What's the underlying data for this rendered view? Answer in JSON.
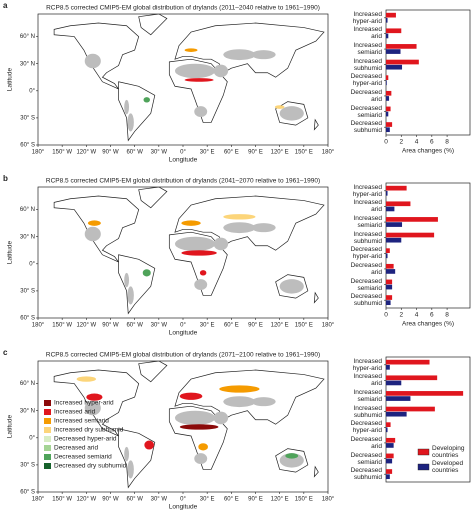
{
  "chart_data": [
    {
      "type": "map",
      "label": "a",
      "title": "RCP8.5 corrected CMIP5-EM global distribution of drylands (2011–2040 relative to 1961–1990)",
      "xlabel": "Longitude",
      "ylabel": "Latitude",
      "xlim": [
        -180,
        180
      ],
      "ylim": [
        -60,
        85
      ],
      "xticks": [
        {
          "value": -180,
          "label": "180°"
        },
        {
          "value": -150,
          "label": "150° W"
        },
        {
          "value": -120,
          "label": "120° W"
        },
        {
          "value": -90,
          "label": "90° W"
        },
        {
          "value": -60,
          "label": "60° W"
        },
        {
          "value": -30,
          "label": "30° W"
        },
        {
          "value": 0,
          "label": "0°"
        },
        {
          "value": 30,
          "label": "30° E"
        },
        {
          "value": 60,
          "label": "60° E"
        },
        {
          "value": 90,
          "label": "90° E"
        },
        {
          "value": 120,
          "label": "120° E"
        },
        {
          "value": 150,
          "label": "150° E"
        },
        {
          "value": 180,
          "label": "180°"
        }
      ],
      "yticks": [
        {
          "value": 60,
          "label": "60° N"
        },
        {
          "value": 30,
          "label": "30° N"
        },
        {
          "value": 0,
          "label": "0°"
        },
        {
          "value": -30,
          "label": "30° S"
        },
        {
          "value": -60,
          "label": "60° S"
        }
      ]
    },
    {
      "type": "hbar",
      "categories": [
        "Increased hyper-arid",
        "Increased arid",
        "Increased semiarid",
        "Increased subhumid",
        "Decreased hyper-arid",
        "Decreased arid",
        "Decreased semiarid",
        "Decreased subhumid"
      ],
      "series": [
        {
          "color": "#e0161e",
          "values": [
            1.3,
            2.0,
            4.0,
            4.3,
            0.3,
            0.7,
            0.6,
            0.8
          ]
        },
        {
          "color": "#1d237f",
          "values": [
            0.2,
            0.3,
            1.9,
            2.1,
            0.1,
            0.4,
            0.3,
            0.5
          ]
        }
      ],
      "xlim": [
        0,
        11
      ],
      "xticks": [
        0,
        2,
        4,
        6,
        8
      ],
      "xlabel": "Area changes (%)"
    },
    {
      "type": "map",
      "label": "b",
      "title": "RCP8.5 corrected CMIP5-EM global distribution of drylands (2041–2070 relative to 1961–1990)",
      "xlabel": "Longitude",
      "ylabel": "Latitude",
      "xlim": [
        -180,
        180
      ],
      "ylim": [
        -60,
        85
      ],
      "xticks": [
        {
          "value": -180,
          "label": "180°"
        },
        {
          "value": -150,
          "label": "150° W"
        },
        {
          "value": -120,
          "label": "120° W"
        },
        {
          "value": -90,
          "label": "90° W"
        },
        {
          "value": -60,
          "label": "60° W"
        },
        {
          "value": -30,
          "label": "30° W"
        },
        {
          "value": 0,
          "label": "0°"
        },
        {
          "value": 30,
          "label": "30° E"
        },
        {
          "value": 60,
          "label": "60° E"
        },
        {
          "value": 90,
          "label": "90° E"
        },
        {
          "value": 120,
          "label": "120° E"
        },
        {
          "value": 150,
          "label": "150° E"
        },
        {
          "value": 180,
          "label": "180°"
        }
      ],
      "yticks": [
        {
          "value": 60,
          "label": "60° N"
        },
        {
          "value": 30,
          "label": "30° N"
        },
        {
          "value": 0,
          "label": "0°"
        },
        {
          "value": -30,
          "label": "30° S"
        },
        {
          "value": -60,
          "label": "60° S"
        }
      ]
    },
    {
      "type": "hbar",
      "categories": [
        "Increased hyper-arid",
        "Increased arid",
        "Increased semiarid",
        "Increased subhumid",
        "Decreased hyper-arid",
        "Decreased arid",
        "Decreased semiarid",
        "Decreased subhumid"
      ],
      "series": [
        {
          "color": "#e0161e",
          "values": [
            2.7,
            3.2,
            6.8,
            6.3,
            0.5,
            1.0,
            0.8,
            0.8
          ]
        },
        {
          "color": "#1d237f",
          "values": [
            0.2,
            1.1,
            2.1,
            2.0,
            0.2,
            1.2,
            0.8,
            0.6
          ]
        }
      ],
      "xlim": [
        0,
        11
      ],
      "xticks": [
        0,
        2,
        4,
        6,
        8
      ],
      "xlabel": "Area changes (%)"
    },
    {
      "type": "map",
      "label": "c",
      "title": "RCP8.5 corrected CMIP5-EM global distribution of drylands (2071–2100 relative to 1961–1990)",
      "xlabel": "Longitude",
      "ylabel": "Latitude",
      "xlim": [
        -180,
        180
      ],
      "ylim": [
        -60,
        85
      ],
      "xticks": [
        {
          "value": -180,
          "label": "180°"
        },
        {
          "value": -150,
          "label": "150° W"
        },
        {
          "value": -120,
          "label": "120° W"
        },
        {
          "value": -90,
          "label": "90° W"
        },
        {
          "value": -60,
          "label": "60° W"
        },
        {
          "value": -30,
          "label": "30° W"
        },
        {
          "value": 0,
          "label": "0°"
        },
        {
          "value": 30,
          "label": "30° E"
        },
        {
          "value": 60,
          "label": "60° E"
        },
        {
          "value": 90,
          "label": "90° E"
        },
        {
          "value": 120,
          "label": "120° E"
        },
        {
          "value": 150,
          "label": "150° E"
        },
        {
          "value": 180,
          "label": "180°"
        }
      ],
      "yticks": [
        {
          "value": 60,
          "label": "60° N"
        },
        {
          "value": 30,
          "label": "30° N"
        },
        {
          "value": 0,
          "label": "0°"
        },
        {
          "value": -30,
          "label": "30° S"
        },
        {
          "value": -60,
          "label": "60° S"
        }
      ],
      "legend": [
        {
          "name": "Increased hyper-arid",
          "color": "#8b0a0a"
        },
        {
          "name": "Increased arid",
          "color": "#e0161e"
        },
        {
          "name": "Increased semiarid",
          "color": "#f59b00"
        },
        {
          "name": "Increased dry subhumid",
          "color": "#fcd57a"
        },
        {
          "name": "Decreased hyper-arid",
          "color": "#d8edc4"
        },
        {
          "name": "Decreased arid",
          "color": "#a4d494"
        },
        {
          "name": "Decreased semiarid",
          "color": "#4fa35a"
        },
        {
          "name": "Decreased dry subhumid",
          "color": "#17622c"
        }
      ]
    },
    {
      "type": "hbar",
      "categories": [
        "Increased hyper-arid",
        "Increased arid",
        "Increased semiarid",
        "Increased subhumid",
        "Decreased hyper-arid",
        "Decreased arid",
        "Decreased semiarid",
        "Decreased subhumid"
      ],
      "series": [
        {
          "name": "Developing countries",
          "color": "#e0161e",
          "values": [
            5.7,
            6.7,
            10.1,
            6.4,
            0.6,
            1.2,
            1.0,
            0.8
          ]
        },
        {
          "name": "Developed countries",
          "color": "#1d237f",
          "values": [
            0.5,
            2.0,
            3.2,
            2.7,
            0.2,
            1.0,
            0.8,
            0.5
          ]
        }
      ],
      "xlim": [
        0,
        11
      ]
    }
  ]
}
